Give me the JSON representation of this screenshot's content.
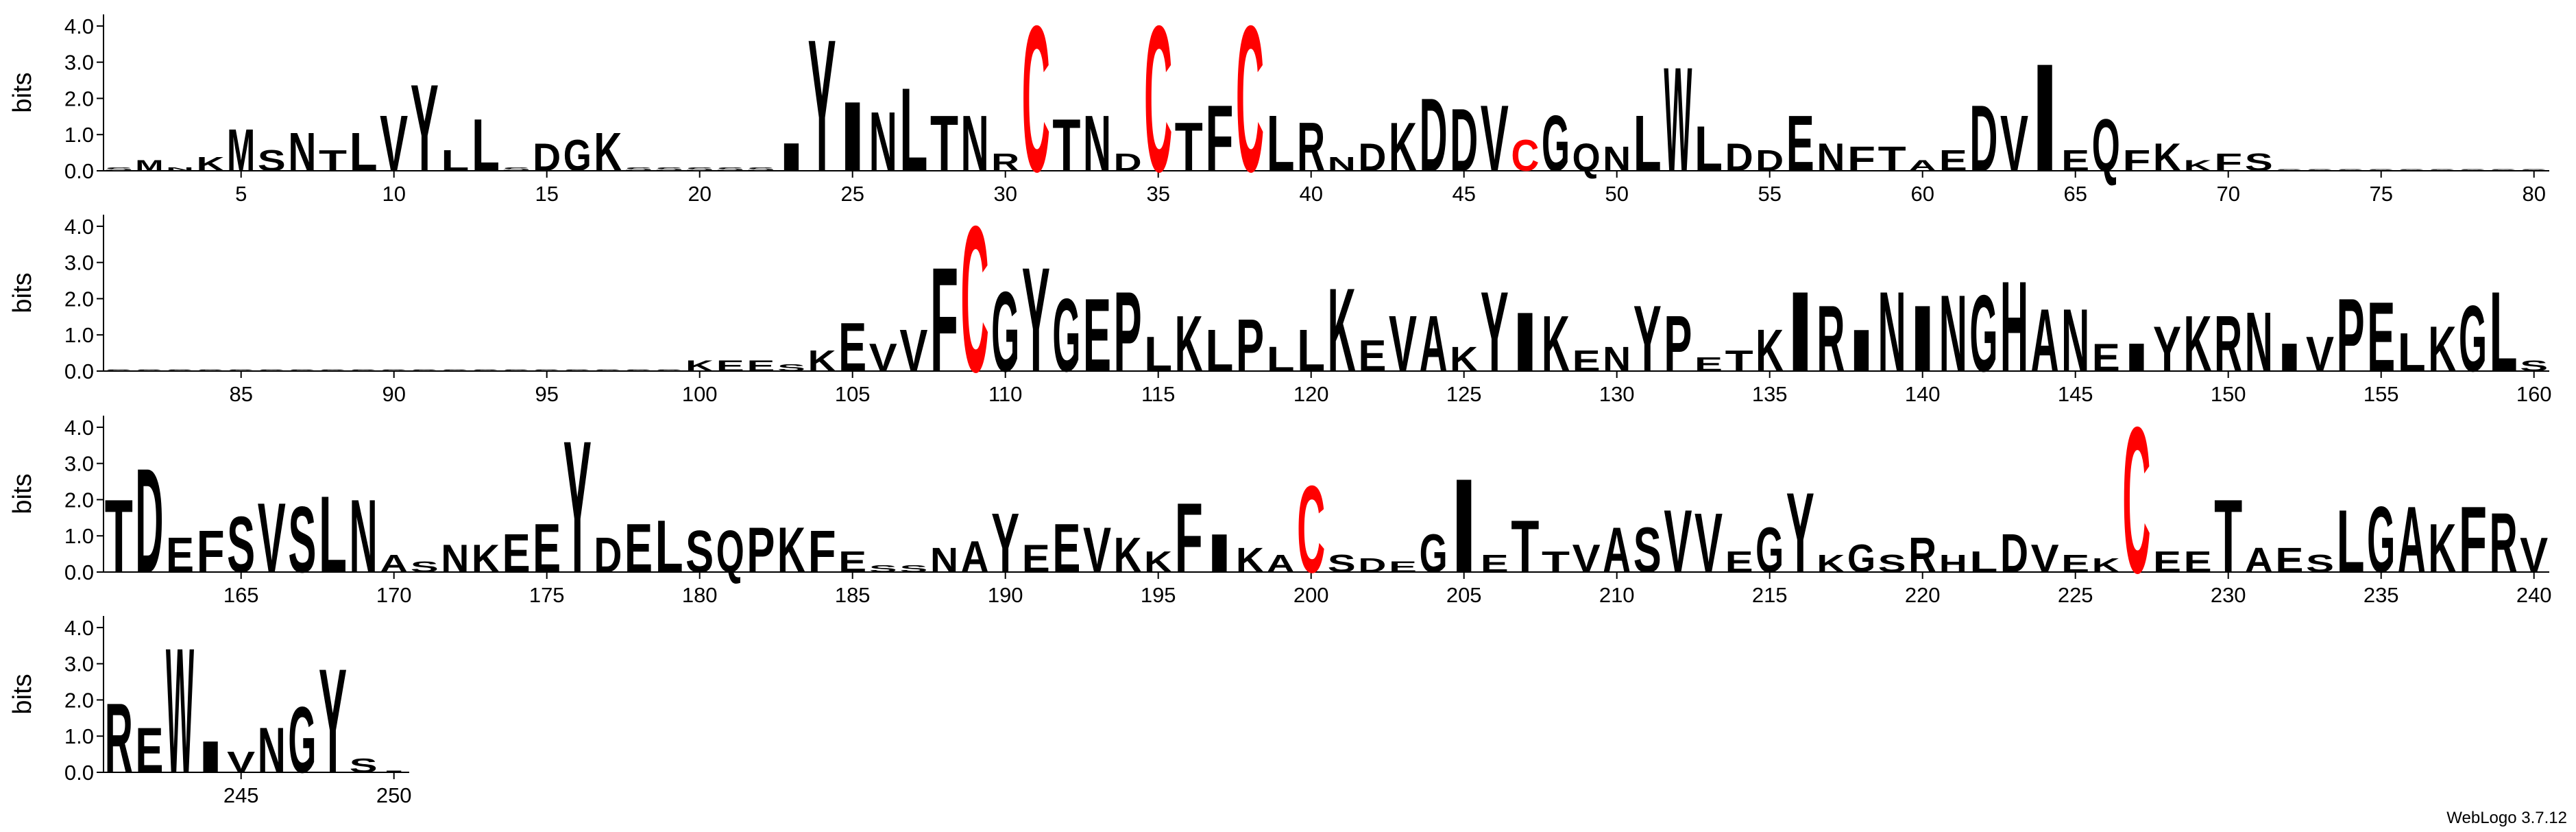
{
  "chart_data": {
    "type": "logo",
    "ylabel": "bits",
    "footer": "WebLogo 3.7.12",
    "color": "#000000",
    "highlight": {
      "letter": "C",
      "color": "#ff0000"
    },
    "ylim": [
      0,
      4.32
    ],
    "yticks": [
      {
        "value": 0,
        "label": "0.0"
      },
      {
        "value": 1,
        "label": "1.0"
      },
      {
        "value": 2,
        "label": "2.0"
      },
      {
        "value": 3,
        "label": "3.0"
      },
      {
        "value": 4,
        "label": "4.0"
      }
    ],
    "xticks": [
      5,
      10,
      15,
      20,
      25,
      30,
      35,
      40,
      45,
      50,
      55,
      60,
      65,
      70,
      75,
      80,
      85,
      90,
      95,
      100,
      105,
      110,
      115,
      120,
      125,
      130,
      135,
      140,
      145,
      150,
      155,
      160,
      165,
      170,
      175,
      180,
      185,
      190,
      195,
      200,
      205,
      210,
      215,
      220,
      225,
      230,
      235,
      240,
      245,
      250
    ],
    "x": [
      1,
      2,
      3,
      4,
      5,
      6,
      7,
      8,
      9,
      10,
      11,
      12,
      13,
      14,
      15,
      16,
      17,
      18,
      19,
      20,
      21,
      22,
      23,
      24,
      25,
      26,
      27,
      28,
      29,
      30,
      31,
      32,
      33,
      34,
      35,
      36,
      37,
      38,
      39,
      40,
      41,
      42,
      43,
      44,
      45,
      46,
      47,
      48,
      49,
      50,
      51,
      52,
      53,
      54,
      55,
      56,
      57,
      58,
      59,
      60,
      61,
      62,
      63,
      64,
      65,
      66,
      67,
      68,
      69,
      70,
      71,
      72,
      73,
      74,
      75,
      76,
      77,
      78,
      79,
      80,
      81,
      82,
      83,
      84,
      85,
      86,
      87,
      88,
      89,
      90,
      91,
      92,
      93,
      94,
      95,
      96,
      97,
      98,
      99,
      100,
      101,
      102,
      103,
      104,
      105,
      106,
      107,
      108,
      109,
      110,
      111,
      112,
      113,
      114,
      115,
      116,
      117,
      118,
      119,
      120,
      121,
      122,
      123,
      124,
      125,
      126,
      127,
      128,
      129,
      130,
      131,
      132,
      133,
      134,
      135,
      136,
      137,
      138,
      139,
      140,
      141,
      142,
      143,
      144,
      145,
      146,
      147,
      148,
      149,
      150,
      151,
      152,
      153,
      154,
      155,
      156,
      157,
      158,
      159,
      160,
      161,
      162,
      163,
      164,
      165,
      166,
      167,
      168,
      169,
      170,
      171,
      172,
      173,
      174,
      175,
      176,
      177,
      178,
      179,
      180,
      181,
      182,
      183,
      184,
      185,
      186,
      187,
      188,
      189,
      190,
      191,
      192,
      193,
      194,
      195,
      196,
      197,
      198,
      199,
      200,
      201,
      202,
      203,
      204,
      205,
      206,
      207,
      208,
      209,
      210,
      211,
      212,
      213,
      214,
      215,
      216,
      217,
      218,
      219,
      220,
      221,
      222,
      223,
      224,
      225,
      226,
      227,
      228,
      229,
      230,
      231,
      232,
      233,
      234,
      235,
      236,
      237,
      238,
      239,
      240,
      241,
      242,
      243,
      244,
      245,
      246,
      247,
      248,
      249,
      250
    ],
    "letters": [
      "S",
      "M",
      "N",
      "K",
      "M",
      "S",
      "N",
      "T",
      "L",
      "V",
      "Y",
      "L",
      "L",
      "S",
      "D",
      "G",
      "K",
      "S",
      "S",
      "S",
      "S",
      "S",
      "I",
      "Y",
      "I",
      "N",
      "L",
      "T",
      "N",
      "R",
      "C",
      "T",
      "N",
      "D",
      "C",
      "T",
      "F",
      "C",
      "L",
      "R",
      "N",
      "D",
      "K",
      "D",
      "D",
      "V",
      "C",
      "G",
      "Q",
      "N",
      "L",
      "W",
      "L",
      "D",
      "D",
      "E",
      "N",
      "F",
      "T",
      "A",
      "E",
      "D",
      "V",
      "I",
      "E",
      "Q",
      "F",
      "K",
      "K",
      "F",
      "S",
      "S",
      "S",
      "S",
      "S",
      "S",
      "S",
      "S",
      "S",
      "S",
      "S",
      "S",
      "S",
      "S",
      "S",
      "S",
      "S",
      "S",
      "S",
      "S",
      "S",
      "S",
      "S",
      "S",
      "S",
      "S",
      "S",
      "S",
      "S",
      "K",
      "E",
      "E",
      "S",
      "K",
      "E",
      "V",
      "V",
      "F",
      "C",
      "G",
      "Y",
      "G",
      "E",
      "P",
      "L",
      "K",
      "L",
      "P",
      "L",
      "L",
      "K",
      "E",
      "V",
      "A",
      "K",
      "Y",
      "I",
      "K",
      "E",
      "N",
      "Y",
      "P",
      "E",
      "T",
      "K",
      "I",
      "R",
      "I",
      "N",
      "I",
      "N",
      "G",
      "H",
      "A",
      "N",
      "E",
      "I",
      "Y",
      "K",
      "R",
      "N",
      "I",
      "V",
      "P",
      "E",
      "L",
      "K",
      "G",
      "L",
      "S",
      "T",
      "D",
      "E",
      "F",
      "S",
      "V",
      "S",
      "L",
      "N",
      "A",
      "S",
      "N",
      "K",
      "E",
      "E",
      "Y",
      "D",
      "E",
      "L",
      "S",
      "Q",
      "P",
      "K",
      "F",
      "E",
      "S",
      "S",
      "N",
      "A",
      "Y",
      "E",
      "E",
      "V",
      "K",
      "K",
      "F",
      "I",
      "K",
      "A",
      "C",
      "S",
      "D",
      "E",
      "G",
      "I",
      "E",
      "T",
      "T",
      "V",
      "A",
      "S",
      "V",
      "V",
      "E",
      "G",
      "Y",
      "K",
      "G",
      "S",
      "R",
      "H",
      "L",
      "D",
      "V",
      "E",
      "K",
      "C",
      "E",
      "E",
      "T",
      "A",
      "E",
      "S",
      "L",
      "G",
      "A",
      "K",
      "F",
      "R",
      "V",
      "R",
      "E",
      "W",
      "I",
      "V",
      "N",
      "G",
      "Y",
      "S",
      "I"
    ],
    "values": [
      0.1,
      0.3,
      0.1,
      0.4,
      1.2,
      0.6,
      1.1,
      0.6,
      1.1,
      1.6,
      2.5,
      0.6,
      1.5,
      0.1,
      0.8,
      0.9,
      1.1,
      0.1,
      0.1,
      0.1,
      0.1,
      0.1,
      0.8,
      3.8,
      2.0,
      1.7,
      2.4,
      1.6,
      1.6,
      0.5,
      4.2,
      1.5,
      1.6,
      0.5,
      4.2,
      1.4,
      1.9,
      4.2,
      1.6,
      1.4,
      0.4,
      0.8,
      1.4,
      2.1,
      1.8,
      1.9,
      0.9,
      1.6,
      0.8,
      0.7,
      1.6,
      3.0,
      1.3,
      0.8,
      0.6,
      1.6,
      0.8,
      0.7,
      0.7,
      0.3,
      0.6,
      1.9,
      1.6,
      3.1,
      0.6,
      1.5,
      0.6,
      0.8,
      0.3,
      0.5,
      0.5,
      0.05,
      0.05,
      0.05,
      0.05,
      0.05,
      0.05,
      0.05,
      0.05,
      0.05,
      0.05,
      0.05,
      0.05,
      0.05,
      0.05,
      0.05,
      0.05,
      0.05,
      0.05,
      0.05,
      0.05,
      0.05,
      0.05,
      0.05,
      0.05,
      0.05,
      0.05,
      0.05,
      0.05,
      0.3,
      0.3,
      0.3,
      0.2,
      0.6,
      1.4,
      0.8,
      1.2,
      3.0,
      4.2,
      2.3,
      3.0,
      2.1,
      2.1,
      2.3,
      1.0,
      1.6,
      1.2,
      1.5,
      0.7,
      1.2,
      2.4,
      0.9,
      1.6,
      1.6,
      0.7,
      2.3,
      1.7,
      1.6,
      0.6,
      0.7,
      1.9,
      1.6,
      0.4,
      0.6,
      1.2,
      2.3,
      1.9,
      1.2,
      2.3,
      1.9,
      2.2,
      2.2,
      2.6,
      1.8,
      1.8,
      0.8,
      0.8,
      1.3,
      1.6,
      1.6,
      1.7,
      0.8,
      1.0,
      2.1,
      2.0,
      1.1,
      1.3,
      1.9,
      2.3,
      0.3,
      2.1,
      3.0,
      1.0,
      1.2,
      1.6,
      2.0,
      1.9,
      2.2,
      2.1,
      0.5,
      0.3,
      0.8,
      0.8,
      1.1,
      1.4,
      3.8,
      1.0,
      1.4,
      1.5,
      1.2,
      1.2,
      1.3,
      1.3,
      1.2,
      0.6,
      0.2,
      0.2,
      0.7,
      0.9,
      1.7,
      0.8,
      1.4,
      1.3,
      1.0,
      0.6,
      2.0,
      1.1,
      0.7,
      0.5,
      2.5,
      0.5,
      0.4,
      0.3,
      1.1,
      2.7,
      0.5,
      1.5,
      0.6,
      0.8,
      1.3,
      1.3,
      1.8,
      1.7,
      0.6,
      1.3,
      2.3,
      0.5,
      0.8,
      0.5,
      1.0,
      0.5,
      0.6,
      1.1,
      0.8,
      0.5,
      0.4,
      4.2,
      0.6,
      0.6,
      2.1,
      0.7,
      0.7,
      0.5,
      1.8,
      1.9,
      1.9,
      1.4,
      1.9,
      1.7,
      1.0,
      2.0,
      1.3,
      3.6,
      0.9,
      0.6,
      1.3,
      1.9,
      3.0,
      0.4,
      0.05
    ]
  }
}
